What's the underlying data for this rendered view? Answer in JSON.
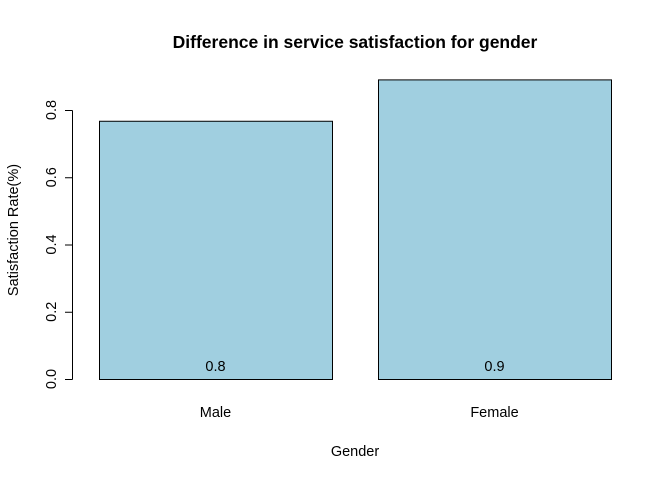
{
  "chart_data": {
    "type": "bar",
    "title": "Difference in service satisfaction for gender",
    "xlabel": "Gender",
    "ylabel": "Satisfaction Rate(%)",
    "categories": [
      "Male",
      "Female"
    ],
    "values": [
      0.768,
      0.891
    ],
    "data_labels": [
      "0.8",
      "0.9"
    ],
    "yticks": [
      "0.0",
      "0.2",
      "0.4",
      "0.6",
      "0.8"
    ],
    "ylim": [
      0,
      0.9
    ],
    "grid": false,
    "bar_color": "#a0cfe0"
  }
}
